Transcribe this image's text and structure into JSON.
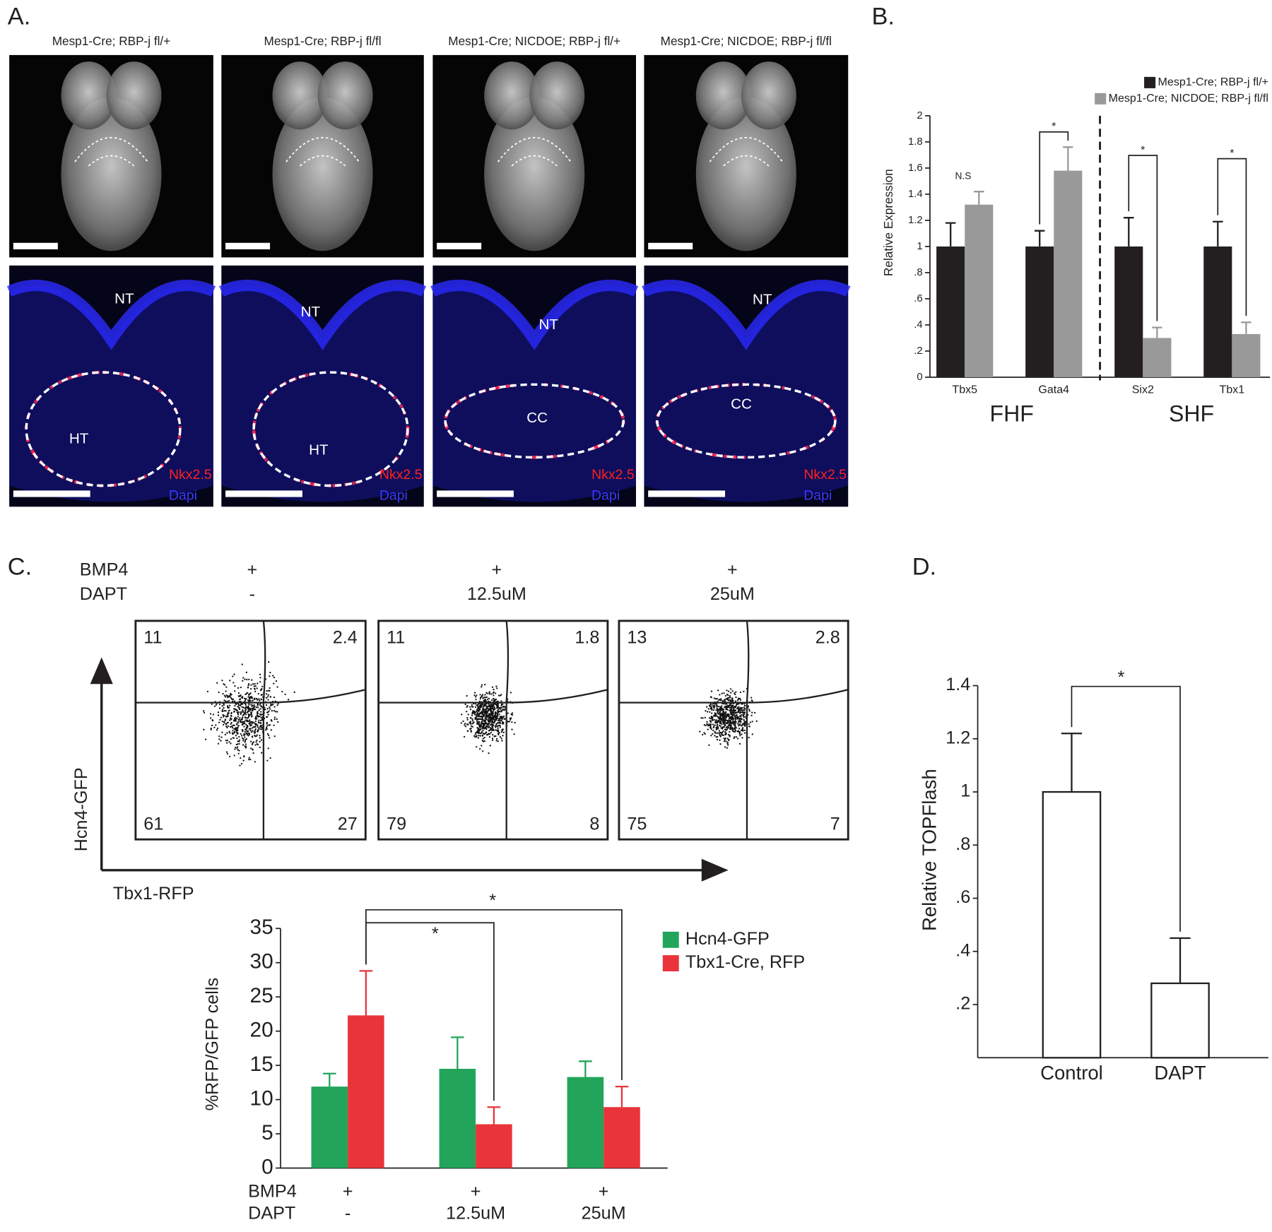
{
  "panels": {
    "a": {
      "label": "A.",
      "titles": [
        "Mesp1-Cre; RBP-j fl/+",
        "Mesp1-Cre; RBP-j fl/fl",
        "Mesp1-Cre; NICDOE; RBP-j fl/+",
        "Mesp1-Cre; NICDOE; RBP-j fl/fl"
      ],
      "sections": [
        {
          "labels": [
            "NT",
            "HT"
          ],
          "stains": [
            "Nkx2.5",
            "Dapi"
          ]
        },
        {
          "labels": [
            "NT",
            "HT"
          ],
          "stains": [
            "Nkx2.5",
            "Dapi"
          ]
        },
        {
          "labels": [
            "NT",
            "CC"
          ],
          "stains": [
            "Nkx2.5",
            "Dapi"
          ]
        },
        {
          "labels": [
            "NT",
            "CC"
          ],
          "stains": [
            "Nkx2.5",
            "Dapi"
          ]
        }
      ]
    },
    "b_label": "B.",
    "c": {
      "label": "C.",
      "row_labels": [
        "BMP4",
        "DAPT"
      ],
      "bmp4": [
        "+",
        "+",
        "+"
      ],
      "dapt": [
        "-",
        "12.5uM",
        "25uM"
      ],
      "y_axis_label": "Hcn4-GFP",
      "x_axis_label": "Tbx1-RFP",
      "quadrants": [
        [
          11,
          2.4,
          61,
          27
        ],
        [
          11,
          1.8,
          79,
          8
        ],
        [
          13,
          2.8,
          75,
          7
        ]
      ]
    },
    "d_label": "D."
  },
  "chart_data": [
    {
      "type": "bar",
      "y_label": "Relative Expression",
      "categories": [
        "Tbx5",
        "Gata4",
        "Six2",
        "Tbx1"
      ],
      "groups": [
        "FHF",
        "SHF"
      ],
      "series": [
        {
          "name": "Mesp1-Cre; RBP-j fl/+",
          "color": "#231f20",
          "values": [
            1,
            1,
            1,
            1
          ],
          "errors": [
            0.18,
            0.12,
            0.22,
            0.19
          ]
        },
        {
          "name": "Mesp1-Cre; NICDOE; RBP-j fl/fl",
          "color": "#999999",
          "values": [
            1.32,
            1.58,
            0.3,
            0.33
          ],
          "errors": [
            0.1,
            0.18,
            0.08,
            0.09
          ]
        }
      ],
      "ylim": [
        0,
        2
      ],
      "yticks": [
        0,
        {
          "value": 0.2,
          "label": ".2"
        },
        {
          "value": 0.4,
          "label": ".4"
        },
        {
          "value": 0.6,
          "label": ".6"
        },
        {
          "value": 0.8,
          "label": ".8"
        },
        1,
        1.2,
        1.4,
        1.6,
        1.8,
        2
      ],
      "annotations": [
        "N.S",
        "*",
        "*",
        "*"
      ],
      "legend": "upper right"
    },
    {
      "type": "bar",
      "y_label": "%RFP/GFP cells",
      "row_labels": [
        "BMP4",
        "DAPT"
      ],
      "bmp4": [
        "+",
        "+",
        "+"
      ],
      "categories": [
        "-",
        "12.5uM",
        "25uM"
      ],
      "series": [
        {
          "name": "Hcn4-GFP",
          "color": "#22a55a",
          "values": [
            11.9,
            14.5,
            13.3
          ],
          "errors": [
            1.9,
            4.6,
            2.3
          ]
        },
        {
          "name": "Tbx1-Cre, RFP",
          "color": "#e8343a",
          "values": [
            22.3,
            6.4,
            8.9
          ],
          "errors": [
            6.5,
            2.5,
            3.0
          ]
        }
      ],
      "ylim": [
        0,
        35
      ],
      "yticks": [
        0,
        5,
        10,
        15,
        20,
        25,
        30,
        35
      ],
      "annotations": [
        "*",
        "*"
      ],
      "legend": "upper right"
    },
    {
      "type": "bar",
      "y_label": "Relative TOPFlash",
      "categories": [
        "Control",
        "DAPT"
      ],
      "values": [
        1,
        0.28
      ],
      "errors": [
        0.22,
        0.17
      ],
      "color": "#ffffff",
      "ylim": [
        0,
        1.4
      ],
      "yticks": [
        {
          "value": 0.2,
          "label": ".2"
        },
        {
          "value": 0.4,
          "label": ".4"
        },
        {
          "value": 0.6,
          "label": ".6"
        },
        {
          "value": 0.8,
          "label": ".8"
        },
        1,
        1.2,
        1.4
      ],
      "annotations": [
        "*"
      ]
    }
  ]
}
